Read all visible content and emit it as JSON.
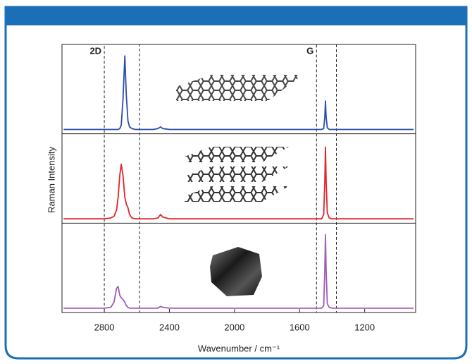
{
  "chart_data": {
    "type": "line",
    "xlabel": "Wavenumber / cm⁻¹",
    "ylabel": "Raman Intensity",
    "xlim": [
      3060,
      887
    ],
    "xticks": [
      2800,
      2400,
      2000,
      1600,
      1200
    ],
    "ylim": [
      0,
      1
    ],
    "regions": [
      {
        "label": "2D",
        "range": [
          2800,
          2583
        ]
      },
      {
        "label": "G",
        "range": [
          1496,
          1374
        ]
      }
    ],
    "x": [
      3050,
      2900,
      2800,
      2760,
      2740,
      2725,
      2715,
      2705,
      2696,
      2685,
      2674,
      2665,
      2655,
      2645,
      2630,
      2610,
      2580,
      2500,
      2470,
      2455,
      2440,
      2400,
      2200,
      2000,
      1800,
      1600,
      1500,
      1465,
      1452,
      1445,
      1441,
      1437,
      1430,
      1418,
      1400,
      1300,
      1100,
      900
    ],
    "series": [
      {
        "color": "#2a4fa8",
        "values": [
          0.05,
          0.05,
          0.05,
          0.05,
          0.05,
          0.05,
          0.05,
          0.06,
          0.1,
          0.4,
          0.9,
          0.45,
          0.15,
          0.08,
          0.06,
          0.05,
          0.05,
          0.05,
          0.06,
          0.08,
          0.06,
          0.05,
          0.05,
          0.05,
          0.05,
          0.05,
          0.05,
          0.05,
          0.06,
          0.2,
          0.38,
          0.2,
          0.07,
          0.05,
          0.05,
          0.05,
          0.05,
          0.05
        ]
      },
      {
        "color": "#e0262b",
        "values": [
          0.05,
          0.05,
          0.05,
          0.06,
          0.08,
          0.15,
          0.3,
          0.55,
          0.68,
          0.55,
          0.3,
          0.22,
          0.18,
          0.1,
          0.06,
          0.05,
          0.05,
          0.05,
          0.06,
          0.1,
          0.07,
          0.05,
          0.05,
          0.05,
          0.05,
          0.05,
          0.05,
          0.05,
          0.1,
          0.5,
          0.88,
          0.5,
          0.12,
          0.06,
          0.05,
          0.05,
          0.05,
          0.05
        ]
      },
      {
        "color": "#a05bb5",
        "values": [
          0.05,
          0.05,
          0.05,
          0.06,
          0.12,
          0.28,
          0.3,
          0.2,
          0.17,
          0.15,
          0.12,
          0.08,
          0.06,
          0.05,
          0.05,
          0.05,
          0.05,
          0.05,
          0.05,
          0.07,
          0.06,
          0.05,
          0.05,
          0.05,
          0.05,
          0.05,
          0.05,
          0.05,
          0.08,
          0.5,
          0.9,
          0.5,
          0.1,
          0.06,
          0.05,
          0.05,
          0.05,
          0.05
        ]
      }
    ]
  }
}
